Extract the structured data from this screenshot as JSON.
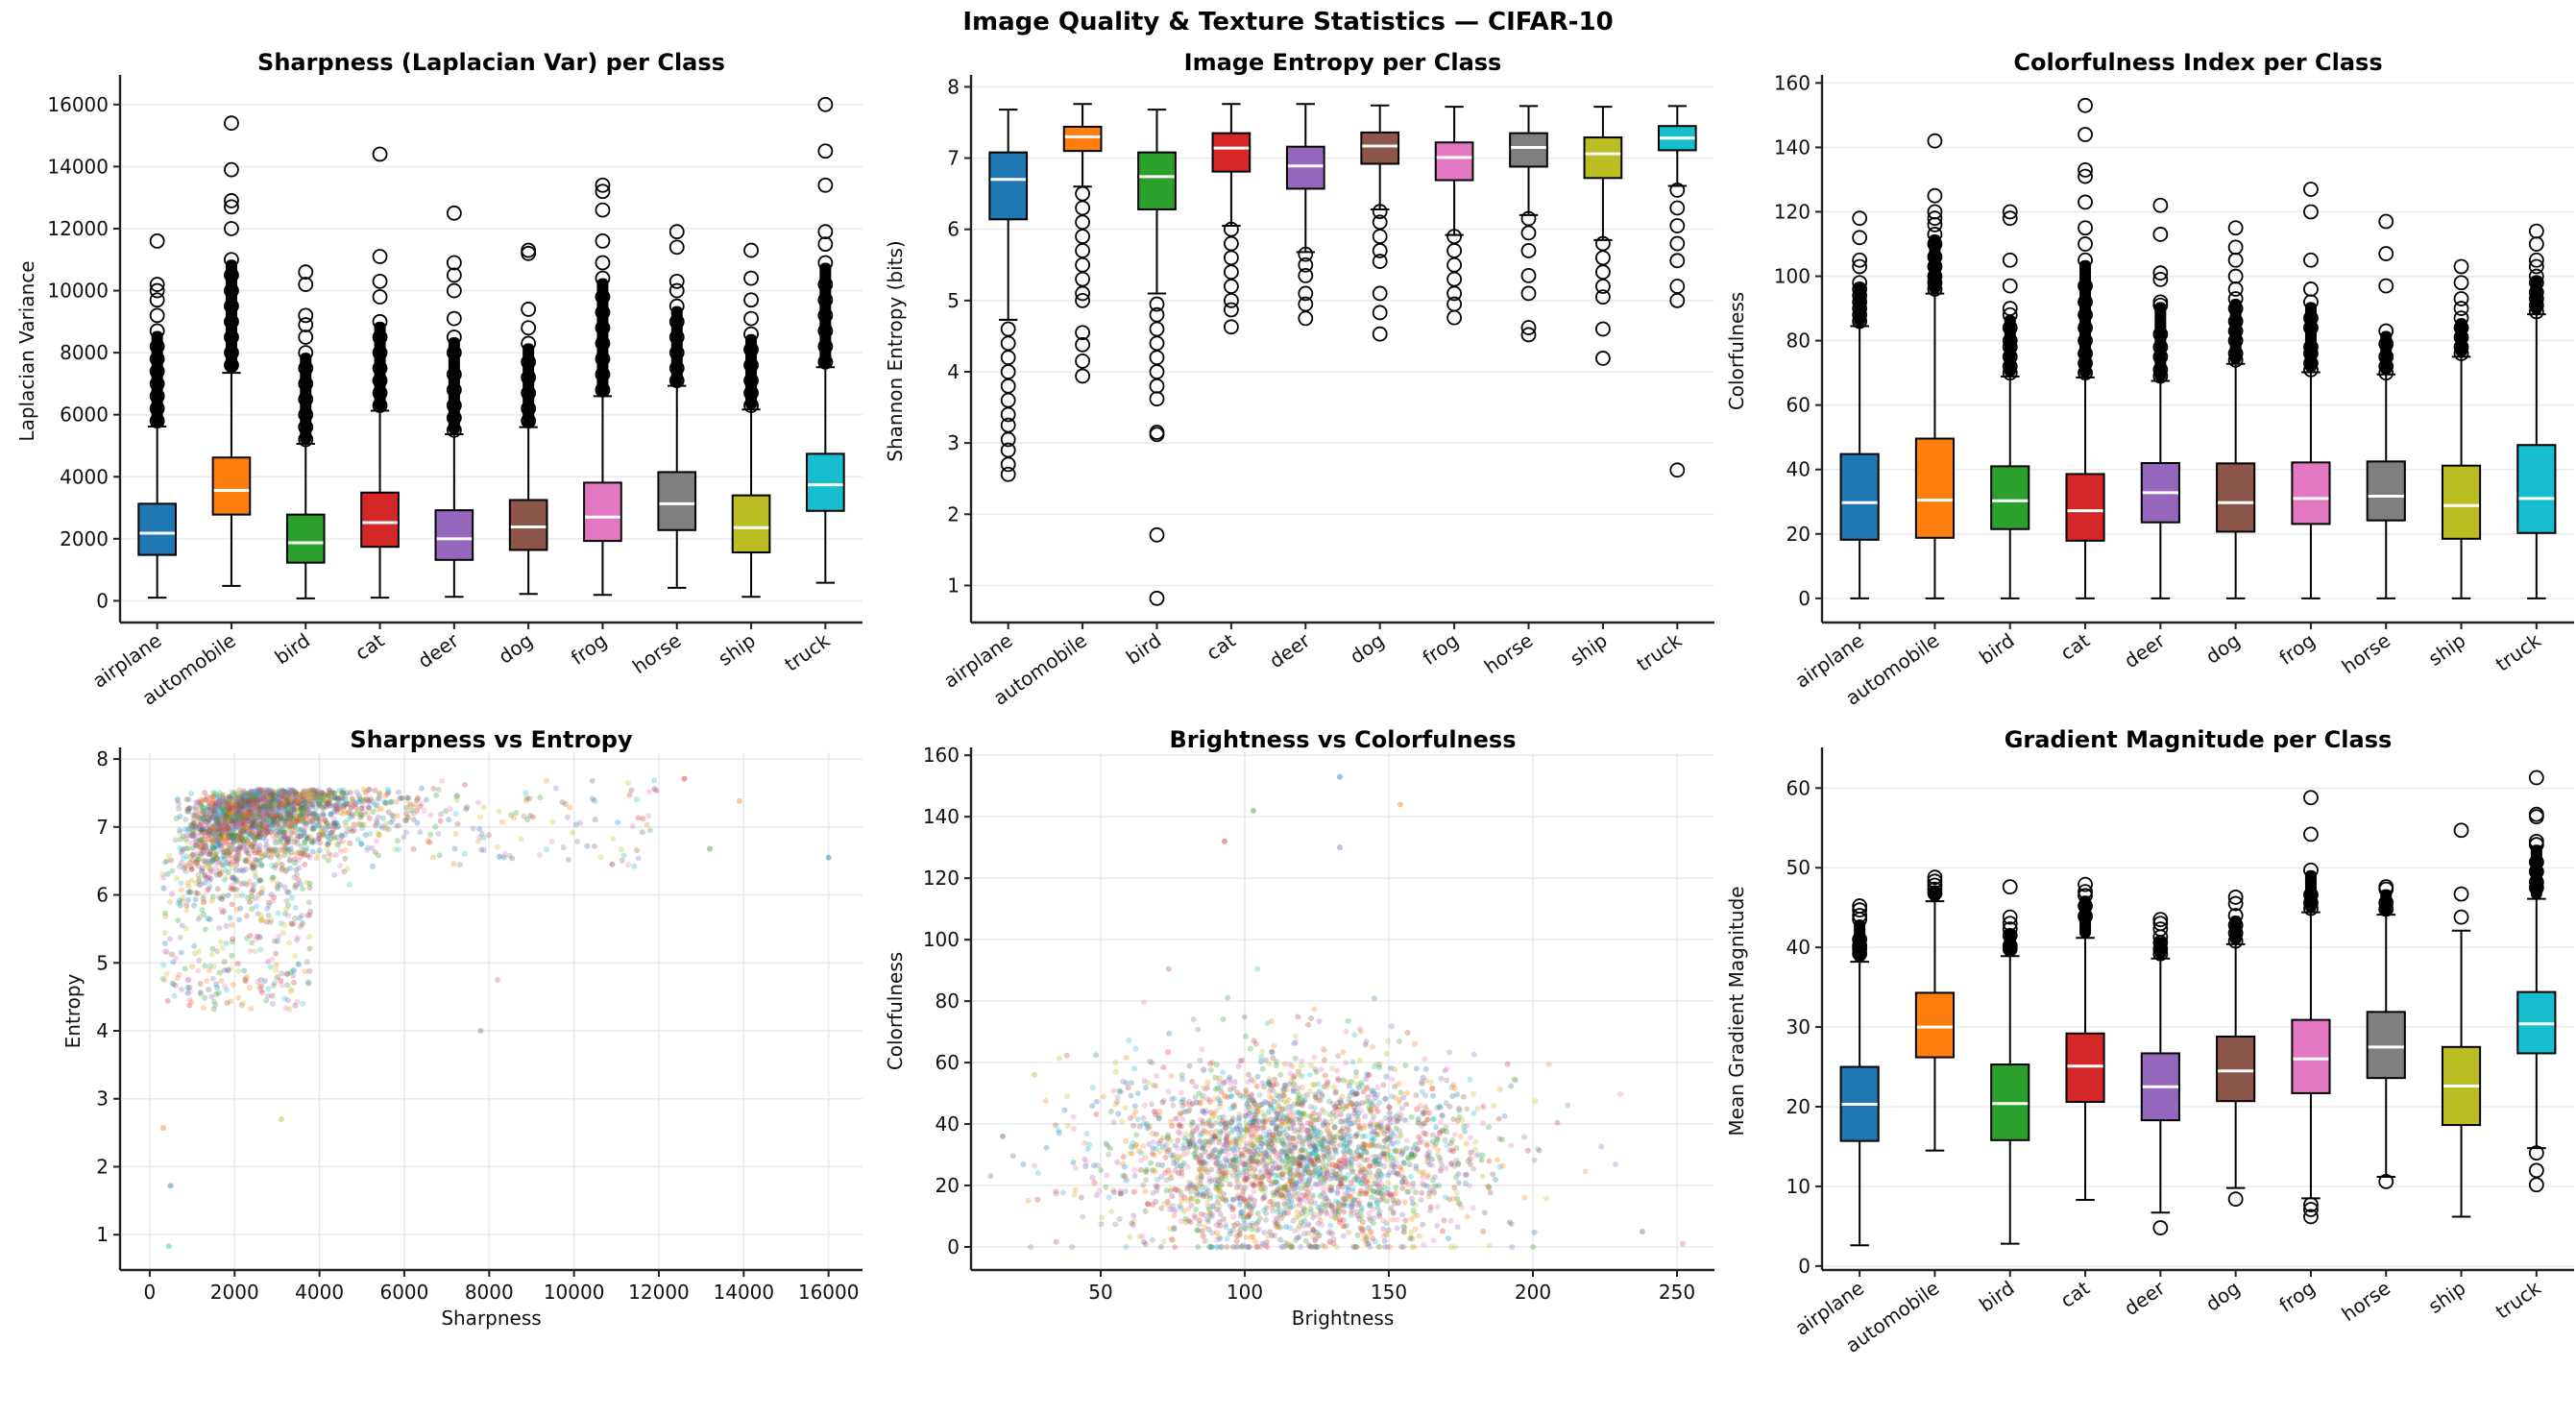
{
  "suptitle": "Image Quality & Texture Statistics — CIFAR-10",
  "class_colors": [
    "#1f77b4",
    "#ff7f0e",
    "#2ca02c",
    "#d62728",
    "#9467bd",
    "#8c564b",
    "#e377c2",
    "#7f7f7f",
    "#bcbd22",
    "#17becf"
  ],
  "chart_data": [
    {
      "id": "sharpness",
      "type": "box",
      "title": "Sharpness (Laplacian Var) per Class",
      "xlabel": "",
      "ylabel": "Laplacian Variance",
      "ylim": [
        -700,
        16800
      ],
      "yticks": [
        0,
        2000,
        4000,
        6000,
        8000,
        10000,
        12000,
        14000,
        16000
      ],
      "grid": "y",
      "categories": [
        "airplane",
        "automobile",
        "bird",
        "cat",
        "deer",
        "dog",
        "frog",
        "horse",
        "ship",
        "truck"
      ],
      "boxes": [
        {
          "whislo": 100,
          "q1": 1480,
          "med": 2180,
          "q3": 3130,
          "whishi": 5620,
          "fliers": [
            5800,
            6200,
            6600,
            7000,
            7400,
            7800,
            8200,
            8700,
            9200,
            9700,
            10000,
            10200,
            11600
          ]
        },
        {
          "whislo": 480,
          "q1": 2780,
          "med": 3560,
          "q3": 4620,
          "whishi": 7350,
          "fliers": [
            7600,
            8000,
            8500,
            9000,
            9500,
            10000,
            10500,
            11000,
            12000,
            12700,
            12900,
            13900,
            15400
          ]
        },
        {
          "whislo": 80,
          "q1": 1230,
          "med": 1870,
          "q3": 2780,
          "whishi": 5060,
          "fliers": [
            5200,
            5600,
            6000,
            6500,
            7000,
            7500,
            8000,
            8500,
            8900,
            9200,
            10200,
            10600
          ]
        },
        {
          "whislo": 100,
          "q1": 1740,
          "med": 2520,
          "q3": 3490,
          "whishi": 6130,
          "fliers": [
            6300,
            6700,
            7100,
            7500,
            8000,
            8500,
            9000,
            9800,
            10300,
            11100,
            14400
          ]
        },
        {
          "whislo": 130,
          "q1": 1320,
          "med": 2000,
          "q3": 2920,
          "whishi": 5370,
          "fliers": [
            5500,
            5900,
            6300,
            6800,
            7300,
            8000,
            8500,
            9100,
            10000,
            10500,
            10900,
            12500
          ]
        },
        {
          "whislo": 220,
          "q1": 1640,
          "med": 2380,
          "q3": 3250,
          "whishi": 5600,
          "fliers": [
            5800,
            6200,
            6700,
            7200,
            7700,
            8300,
            8800,
            9400,
            11200,
            11300
          ]
        },
        {
          "whislo": 190,
          "q1": 1930,
          "med": 2700,
          "q3": 3810,
          "whishi": 6600,
          "fliers": [
            6800,
            7300,
            7800,
            8300,
            8800,
            9300,
            9800,
            10400,
            10900,
            11600,
            12600,
            13200,
            13400
          ]
        },
        {
          "whislo": 420,
          "q1": 2280,
          "med": 3130,
          "q3": 4150,
          "whishi": 6930,
          "fliers": [
            7100,
            7500,
            8000,
            8500,
            9000,
            9500,
            10000,
            10300,
            11400,
            11900
          ]
        },
        {
          "whislo": 130,
          "q1": 1560,
          "med": 2360,
          "q3": 3400,
          "whishi": 6170,
          "fliers": [
            6300,
            6700,
            7100,
            7600,
            8100,
            8600,
            9100,
            9700,
            10400,
            11300
          ]
        },
        {
          "whislo": 580,
          "q1": 2900,
          "med": 3740,
          "q3": 4740,
          "whishi": 7530,
          "fliers": [
            7700,
            8200,
            8700,
            9200,
            9700,
            10200,
            10900,
            11500,
            11900,
            13400,
            14500,
            16000
          ]
        }
      ]
    },
    {
      "id": "entropy",
      "type": "box",
      "title": "Image Entropy per Class",
      "xlabel": "",
      "ylabel": "Shannon Entropy (bits)",
      "ylim": [
        0.48,
        8.1
      ],
      "yticks": [
        1,
        2,
        3,
        4,
        5,
        6,
        7,
        8
      ],
      "grid": "y",
      "categories": [
        "airplane",
        "automobile",
        "bird",
        "cat",
        "deer",
        "dog",
        "frog",
        "horse",
        "ship",
        "truck"
      ],
      "boxes": [
        {
          "whislo": 4.73,
          "q1": 6.14,
          "med": 6.7,
          "q3": 7.08,
          "whishi": 7.68,
          "fliers": [
            4.6,
            4.4,
            4.2,
            4.0,
            3.8,
            3.6,
            3.4,
            3.25,
            3.05,
            2.9,
            2.7,
            2.56
          ]
        },
        {
          "whislo": 6.6,
          "q1": 7.1,
          "med": 7.3,
          "q3": 7.44,
          "whishi": 7.76,
          "fliers": [
            6.5,
            6.3,
            6.1,
            5.9,
            5.7,
            5.5,
            5.3,
            5.1,
            5.0,
            4.55,
            4.38,
            4.15,
            3.94
          ]
        },
        {
          "whislo": 5.1,
          "q1": 6.28,
          "med": 6.74,
          "q3": 7.08,
          "whishi": 7.68,
          "fliers": [
            4.95,
            4.8,
            4.6,
            4.4,
            4.2,
            4.0,
            3.8,
            3.62,
            3.15,
            3.12,
            1.71,
            0.82
          ]
        },
        {
          "whislo": 6.05,
          "q1": 6.81,
          "med": 7.14,
          "q3": 7.35,
          "whishi": 7.76,
          "fliers": [
            6.0,
            5.8,
            5.6,
            5.4,
            5.2,
            5.0,
            4.87,
            4.63
          ]
        },
        {
          "whislo": 5.68,
          "q1": 6.57,
          "med": 6.89,
          "q3": 7.16,
          "whishi": 7.76,
          "fliers": [
            5.65,
            5.5,
            5.35,
            5.1,
            4.95,
            4.75
          ]
        },
        {
          "whislo": 6.28,
          "q1": 6.92,
          "med": 7.17,
          "q3": 7.36,
          "whishi": 7.74,
          "fliers": [
            6.25,
            6.1,
            5.9,
            5.7,
            5.55,
            5.1,
            4.83,
            4.53
          ]
        },
        {
          "whislo": 5.92,
          "q1": 6.69,
          "med": 7.01,
          "q3": 7.22,
          "whishi": 7.72,
          "fliers": [
            5.9,
            5.7,
            5.5,
            5.3,
            5.1,
            4.95,
            4.76
          ]
        },
        {
          "whislo": 6.2,
          "q1": 6.88,
          "med": 7.15,
          "q3": 7.35,
          "whishi": 7.73,
          "fliers": [
            6.15,
            5.95,
            5.7,
            5.35,
            5.1,
            4.62,
            4.52
          ]
        },
        {
          "whislo": 5.85,
          "q1": 6.72,
          "med": 7.06,
          "q3": 7.29,
          "whishi": 7.72,
          "fliers": [
            5.8,
            5.6,
            5.4,
            5.2,
            5.05,
            4.6,
            4.19
          ]
        },
        {
          "whislo": 6.61,
          "q1": 7.11,
          "med": 7.28,
          "q3": 7.45,
          "whishi": 7.73,
          "fliers": [
            6.55,
            6.3,
            6.05,
            5.8,
            5.56,
            5.2,
            5.0,
            2.62
          ]
        }
      ]
    },
    {
      "id": "colorfulness",
      "type": "box",
      "title": "Colorfulness Index per Class",
      "xlabel": "",
      "ylabel": "Colorfulness",
      "ylim": [
        -7.5,
        161
      ],
      "yticks": [
        0,
        20,
        40,
        60,
        80,
        100,
        120,
        140,
        160
      ],
      "grid": "y",
      "categories": [
        "airplane",
        "automobile",
        "bird",
        "cat",
        "deer",
        "dog",
        "frog",
        "horse",
        "ship",
        "truck"
      ],
      "boxes": [
        {
          "whislo": 0,
          "q1": 18.2,
          "med": 29.7,
          "q3": 44.8,
          "whishi": 84.5,
          "fliers": [
            86,
            88,
            90,
            92,
            94,
            96,
            98,
            103,
            105,
            112,
            118
          ]
        },
        {
          "whislo": 0,
          "q1": 18.8,
          "med": 30.5,
          "q3": 49.6,
          "whishi": 94.6,
          "fliers": [
            96,
            98,
            100,
            103,
            106,
            110,
            113,
            116,
            118,
            120,
            125,
            142
          ]
        },
        {
          "whislo": 0,
          "q1": 21.5,
          "med": 30.3,
          "q3": 41.0,
          "whishi": 68.9,
          "fliers": [
            70,
            72,
            75,
            78,
            80,
            84,
            88,
            90,
            97,
            105,
            118,
            120
          ]
        },
        {
          "whislo": 0,
          "q1": 17.9,
          "med": 27.2,
          "q3": 38.6,
          "whishi": 68.6,
          "fliers": [
            70,
            73,
            76,
            80,
            84,
            88,
            92,
            97,
            105,
            110,
            115,
            123,
            131,
            133,
            144,
            153
          ]
        },
        {
          "whislo": 0,
          "q1": 23.6,
          "med": 32.8,
          "q3": 42.0,
          "whishi": 67.5,
          "fliers": [
            69,
            71,
            75,
            78,
            82,
            91,
            92,
            99,
            101,
            113,
            122
          ]
        },
        {
          "whislo": 0,
          "q1": 20.7,
          "med": 29.7,
          "q3": 41.9,
          "whishi": 72.8,
          "fliers": [
            74,
            76,
            80,
            83,
            86,
            90,
            93,
            96,
            100,
            105,
            109,
            115
          ]
        },
        {
          "whislo": 0,
          "q1": 23.1,
          "med": 31.0,
          "q3": 42.2,
          "whishi": 70.2,
          "fliers": [
            71,
            73,
            76,
            78,
            84,
            87,
            92,
            96,
            105,
            120,
            127
          ]
        },
        {
          "whislo": 0,
          "q1": 24.2,
          "med": 31.7,
          "q3": 42.5,
          "whishi": 69.5,
          "fliers": [
            70,
            72,
            75,
            79,
            83,
            97,
            107,
            117
          ]
        },
        {
          "whislo": 0,
          "q1": 18.5,
          "med": 28.8,
          "q3": 41.2,
          "whishi": 75.0,
          "fliers": [
            76,
            78,
            81,
            84,
            87,
            90,
            93,
            98,
            103
          ]
        },
        {
          "whislo": 0,
          "q1": 20.3,
          "med": 31.0,
          "q3": 47.6,
          "whishi": 88.2,
          "fliers": [
            89,
            91,
            93,
            95,
            98,
            100,
            103,
            105,
            110,
            114
          ]
        }
      ]
    },
    {
      "id": "sharp_vs_entropy",
      "type": "scatter",
      "title": "Sharpness vs Entropy",
      "xlabel": "Sharpness",
      "ylabel": "Entropy",
      "xlim": [
        -700,
        16800
      ],
      "ylim": [
        0.48,
        8.1
      ],
      "xticks": [
        0,
        2000,
        4000,
        6000,
        8000,
        10000,
        12000,
        14000,
        16000
      ],
      "yticks": [
        1,
        2,
        3,
        4,
        5,
        6,
        7,
        8
      ],
      "grid": "both",
      "alpha": 0.3,
      "series_by_class": true,
      "distribution": {
        "dense_region": {
          "x_range": [
            500,
            6500
          ],
          "y_range": [
            6.0,
            7.7
          ]
        },
        "sparse_tail_x": [
          7000,
          16000
        ],
        "low_entropy_tail": {
          "x_range": [
            100,
            3500
          ],
          "y_range": [
            0.8,
            5.5
          ]
        }
      },
      "sample_points": [
        [
          16000,
          6.55
        ],
        [
          13900,
          7.38
        ],
        [
          13200,
          6.68
        ],
        [
          12600,
          7.71
        ],
        [
          11900,
          7.56
        ],
        [
          10900,
          6.45
        ],
        [
          8200,
          4.75
        ],
        [
          7800,
          4.0
        ],
        [
          3100,
          2.7
        ],
        [
          450,
          0.83
        ],
        [
          490,
          1.72
        ],
        [
          320,
          2.57
        ]
      ]
    },
    {
      "id": "bright_vs_color",
      "type": "scatter",
      "title": "Brightness vs Colorfulness",
      "xlabel": "Brightness",
      "ylabel": "Colorfulness",
      "xlim": [
        5,
        263
      ],
      "ylim": [
        -7.5,
        161
      ],
      "xticks": [
        50,
        100,
        150,
        200,
        250
      ],
      "yticks": [
        0,
        20,
        40,
        60,
        80,
        100,
        120,
        140,
        160
      ],
      "grid": "both",
      "alpha": 0.3,
      "series_by_class": true,
      "distribution": {
        "center": [
          118,
          30
        ],
        "x_spread": 32,
        "y_spread": 17,
        "zero_colorfulness_row": {
          "x_range": [
            30,
            235
          ]
        }
      },
      "sample_points": [
        [
          133,
          153
        ],
        [
          154,
          144
        ],
        [
          103,
          142
        ],
        [
          93,
          132
        ],
        [
          133,
          130
        ],
        [
          16,
          36
        ],
        [
          252,
          1
        ],
        [
          238,
          5
        ],
        [
          27,
          56
        ]
      ]
    },
    {
      "id": "gradient",
      "type": "box",
      "title": "Gradient Magnitude per Class",
      "xlabel": "",
      "ylabel": "Mean Gradient Magnitude",
      "ylim": [
        -0.5,
        64.5
      ],
      "yticks": [
        0,
        10,
        20,
        30,
        40,
        50,
        60
      ],
      "grid": "y",
      "categories": [
        "airplane",
        "automobile",
        "bird",
        "cat",
        "deer",
        "dog",
        "frog",
        "horse",
        "ship",
        "truck"
      ],
      "boxes": [
        {
          "whislo": 2.6,
          "q1": 15.7,
          "med": 20.3,
          "q3": 25.0,
          "whishi": 38.2,
          "fliers": [
            39.2,
            39.8,
            40.2,
            41.0,
            43.5,
            44.0,
            44.7,
            45.2
          ]
        },
        {
          "whislo": 14.5,
          "q1": 26.2,
          "med": 30.0,
          "q3": 34.3,
          "whishi": 45.8,
          "fliers": [
            46.8,
            47.3,
            47.8,
            48.3,
            48.8
          ]
        },
        {
          "whislo": 2.8,
          "q1": 15.8,
          "med": 20.4,
          "q3": 25.3,
          "whishi": 38.9,
          "fliers": [
            39.8,
            40.2,
            41.5,
            42.3,
            43.0,
            43.8,
            47.6
          ]
        },
        {
          "whislo": 8.3,
          "q1": 20.6,
          "med": 25.1,
          "q3": 29.2,
          "whishi": 41.2,
          "fliers": [
            43.9,
            45.2,
            46.5,
            47.0,
            47.9
          ]
        },
        {
          "whislo": 6.7,
          "q1": 18.3,
          "med": 22.5,
          "q3": 26.7,
          "whishi": 38.6,
          "fliers": [
            39.2,
            39.8,
            40.6,
            41.3,
            42.3,
            43.0,
            43.5,
            4.8
          ]
        },
        {
          "whislo": 9.8,
          "q1": 20.7,
          "med": 24.5,
          "q3": 28.8,
          "whishi": 40.4,
          "fliers": [
            40.8,
            41.8,
            42.8,
            44.0,
            45.5,
            46.3,
            8.4
          ]
        },
        {
          "whislo": 8.5,
          "q1": 21.7,
          "med": 26.0,
          "q3": 30.9,
          "whishi": 44.4,
          "fliers": [
            44.9,
            45.6,
            46.6,
            49.7,
            54.2,
            58.8,
            7.7,
            7.1,
            6.2
          ]
        },
        {
          "whislo": 11.2,
          "q1": 23.6,
          "med": 27.5,
          "q3": 31.9,
          "whishi": 44.1,
          "fliers": [
            44.8,
            45.6,
            47.3,
            47.6,
            10.6
          ]
        },
        {
          "whislo": 6.2,
          "q1": 17.7,
          "med": 22.6,
          "q3": 27.5,
          "whishi": 42.1,
          "fliers": [
            43.8,
            46.7,
            54.7
          ]
        },
        {
          "whislo": 14.8,
          "q1": 26.7,
          "med": 30.4,
          "q3": 34.4,
          "whishi": 46.1,
          "fliers": [
            47.5,
            48.2,
            49.5,
            50.7,
            52.9,
            53.3,
            56.4,
            56.7,
            61.3,
            14.2,
            12.0,
            10.2
          ]
        }
      ]
    }
  ]
}
